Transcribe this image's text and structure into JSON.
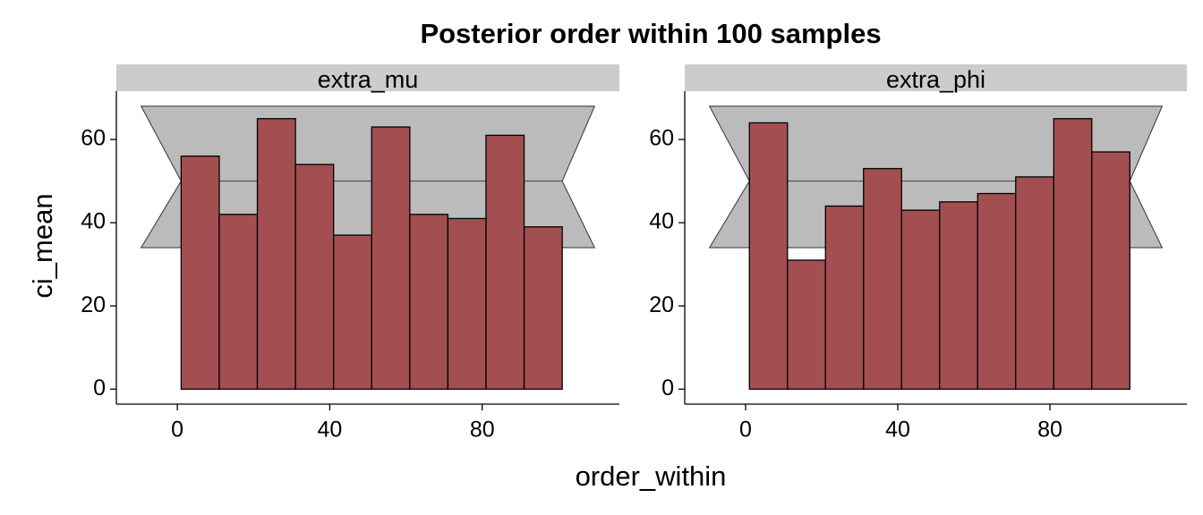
{
  "title": "Posterior order within 100 samples",
  "xlabel": "order_within",
  "ylabel": "ci_mean",
  "chart_data": [
    {
      "type": "histogram",
      "strip": "extra_mu",
      "bins": [
        1,
        11,
        21,
        31,
        41,
        51,
        61,
        71,
        81,
        91,
        101
      ],
      "values": [
        56,
        42,
        65,
        54,
        37,
        63,
        42,
        41,
        61,
        39
      ],
      "color": "#a34f51",
      "band": {
        "x": [
          -9.5,
          1,
          -9.5,
          109.5,
          101,
          109.5
        ],
        "y": [
          68,
          50,
          34,
          34,
          50,
          68
        ]
      },
      "mean_line": {
        "x": [
          1,
          101
        ],
        "y": [
          50,
          50
        ]
      },
      "band_color": "#bbbbbb",
      "xlim": [
        -16,
        116
      ],
      "ylim": [
        -3.6,
        71.6
      ],
      "xticks": [
        0,
        40,
        80
      ],
      "yticks": [
        0,
        20,
        40,
        60
      ]
    },
    {
      "type": "histogram",
      "strip": "extra_phi",
      "bins": [
        1,
        11,
        21,
        31,
        41,
        51,
        61,
        71,
        81,
        91,
        101
      ],
      "values": [
        64,
        31,
        44,
        53,
        43,
        45,
        47,
        51,
        65,
        57
      ],
      "color": "#a34f51",
      "band": {
        "x": [
          -9.5,
          1,
          -9.5,
          109.5,
          101,
          109.5
        ],
        "y": [
          68,
          50,
          34,
          34,
          50,
          68
        ]
      },
      "mean_line": {
        "x": [
          1,
          101
        ],
        "y": [
          50,
          50
        ]
      },
      "band_color": "#bbbbbb",
      "xlim": [
        -16,
        116
      ],
      "ylim": [
        -3.6,
        71.6
      ],
      "xticks": [
        0,
        40,
        80
      ],
      "yticks": [
        0,
        20,
        40,
        60
      ]
    }
  ]
}
